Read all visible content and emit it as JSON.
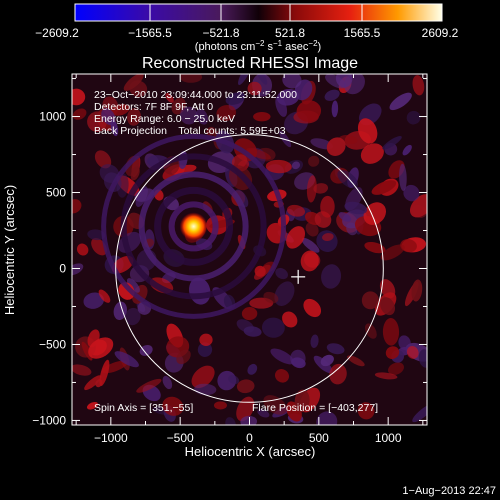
{
  "colorbar": {
    "ticks": [
      "−2609.2",
      "−1565.5",
      "−521.8",
      "521.8",
      "1565.5",
      "2609.2"
    ],
    "units_main": "(photons cm",
    "units_exp1": "−2",
    "units_mid": " s",
    "units_exp2": "−1",
    "units_mid2": " asec",
    "units_exp3": "−2",
    "units_end": ")"
  },
  "chart_data": {
    "type": "heatmap",
    "title": "Reconstructed RHESSI Image",
    "xlabel": "Heliocentric X (arcsec)",
    "ylabel": "Heliocentric Y (arcsec)",
    "xlim": [
      -1280,
      1280
    ],
    "ylim": [
      -1030,
      1280
    ],
    "xticks": [
      -1000,
      -500,
      0,
      500,
      1000
    ],
    "xtick_labels": [
      "−1000",
      "−500",
      "0",
      "500",
      "1000"
    ],
    "yticks": [
      -1000,
      -500,
      0,
      500,
      1000
    ],
    "ytick_labels": [
      "−1000",
      "−500",
      "0",
      "500",
      "1000"
    ],
    "color_range": [
      -2609.2,
      2609.2
    ],
    "solar_disk_radius": 965,
    "flare_source": {
      "x": -403,
      "y": 277
    },
    "spin_axis_marker": {
      "x": 351,
      "y": -55
    }
  },
  "annotations": {
    "line1": "23−Oct−2010 23:09:44.000 to 23:11:52.000",
    "line2": "Detectors: 7F 8F 9F, Att 0",
    "line3": "Energy Range: 6.0 − 25.0 keV",
    "line4": "Back Projection    Total counts: 5.59E+03",
    "spin_axis": "Spin Axis = [351,−55]",
    "flare_position": "Flare Position = [−403,277]"
  },
  "footer": {
    "timestamp": "1−Aug−2013 22:47"
  }
}
